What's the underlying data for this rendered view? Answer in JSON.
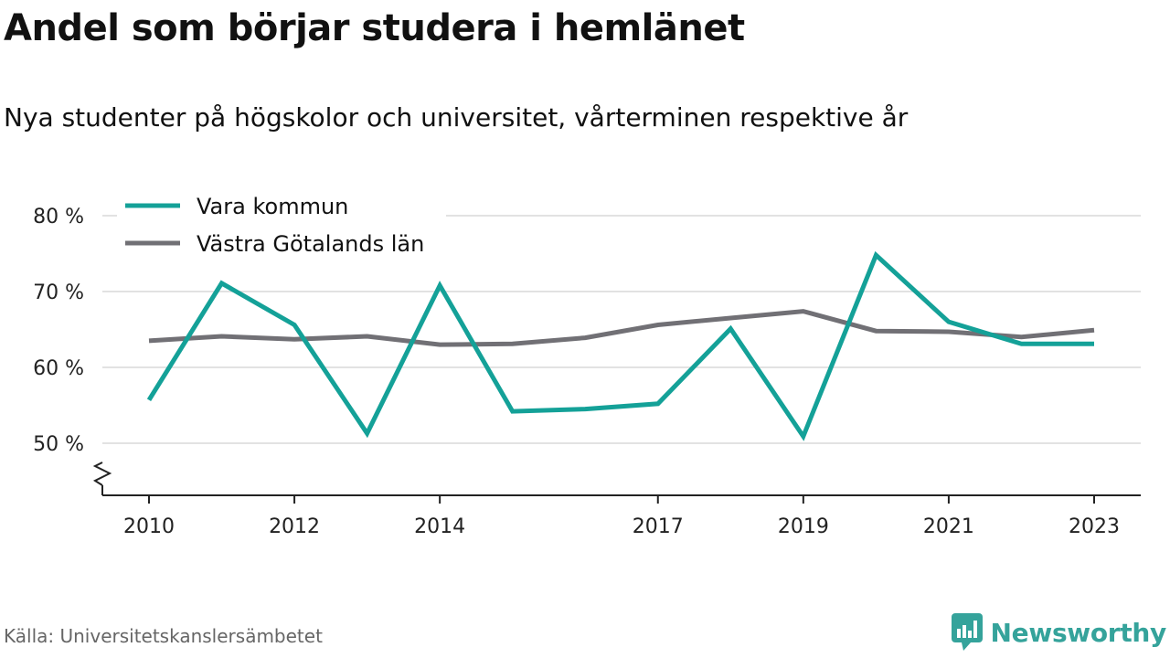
{
  "title": "Andel som börjar studera i hemlänet",
  "subtitle": "Nya studenter på högskolor och universitet, vårterminen respektive år",
  "source": "Källa: Universitetskanslersämbetet",
  "brand": {
    "name": "Newsworthy",
    "icon": "newsworthy-logo-icon",
    "color": "#35a39b"
  },
  "chart_data": {
    "type": "line",
    "title": "Andel som börjar studera i hemlänet",
    "subtitle": "Nya studenter på högskolor och universitet, vårterminen respektive år",
    "x": [
      2010,
      2011,
      2012,
      2013,
      2014,
      2015,
      2016,
      2017,
      2018,
      2019,
      2020,
      2021,
      2022,
      2023
    ],
    "x_ticks": [
      2010,
      2012,
      2014,
      2017,
      2019,
      2021,
      2023
    ],
    "y_ticks": [
      50,
      60,
      70,
      80
    ],
    "y_tick_labels": [
      "50 %",
      "60 %",
      "70 %",
      "80 %"
    ],
    "ylim": [
      44,
      80
    ],
    "y_axis_break": true,
    "grid": true,
    "legend_position": "top-left",
    "series": [
      {
        "name": "Vara kommun",
        "color": "#14a198",
        "values": [
          55.7,
          71.1,
          65.6,
          51.3,
          70.8,
          54.2,
          54.5,
          55.2,
          65.1,
          50.9,
          74.8,
          66.0,
          63.1,
          63.1
        ]
      },
      {
        "name": "Västra Götalands län",
        "color": "#717075",
        "values": [
          63.5,
          64.1,
          63.7,
          64.1,
          63.0,
          63.1,
          63.9,
          65.6,
          66.5,
          67.4,
          64.8,
          64.7,
          64.0,
          64.9
        ]
      }
    ]
  }
}
